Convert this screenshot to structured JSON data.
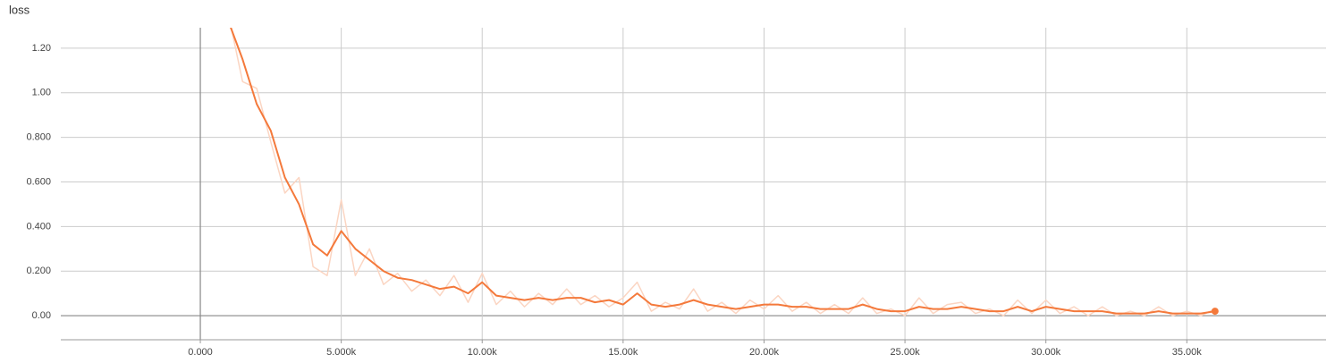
{
  "chart_data": {
    "type": "line",
    "title": "loss",
    "x": [
      1000,
      1500,
      2000,
      2500,
      3000,
      3500,
      4000,
      4500,
      5000,
      5500,
      6000,
      6500,
      7000,
      7500,
      8000,
      8500,
      9000,
      9500,
      10000,
      10500,
      11000,
      11500,
      12000,
      12500,
      13000,
      13500,
      14000,
      14500,
      15000,
      15500,
      16000,
      16500,
      17000,
      17500,
      18000,
      18500,
      19000,
      19500,
      20000,
      20500,
      21000,
      21500,
      22000,
      22500,
      23000,
      23500,
      24000,
      24500,
      25000,
      25500,
      26000,
      26500,
      27000,
      27500,
      28000,
      28500,
      29000,
      29500,
      30000,
      30500,
      31000,
      31500,
      32000,
      32500,
      33000,
      33500,
      34000,
      34500,
      35000,
      35500,
      36000
    ],
    "series": [
      {
        "color": "#fbd5c2",
        "values": [
          1.35,
          1.05,
          1.02,
          0.78,
          0.55,
          0.62,
          0.22,
          0.18,
          0.52,
          0.18,
          0.3,
          0.14,
          0.19,
          0.11,
          0.16,
          0.09,
          0.18,
          0.06,
          0.19,
          0.05,
          0.11,
          0.04,
          0.1,
          0.05,
          0.12,
          0.05,
          0.09,
          0.04,
          0.08,
          0.15,
          0.02,
          0.06,
          0.03,
          0.12,
          0.02,
          0.06,
          0.01,
          0.07,
          0.03,
          0.09,
          0.02,
          0.06,
          0.01,
          0.05,
          0.01,
          0.08,
          0.01,
          0.03,
          0.0,
          0.08,
          0.01,
          0.05,
          0.06,
          0.01,
          0.03,
          0.0,
          0.07,
          0.01,
          0.07,
          0.01,
          0.04,
          0.0,
          0.04,
          0.0,
          0.02,
          0.0,
          0.04,
          0.0,
          0.02,
          0.0,
          0.03
        ]
      },
      {
        "color": "#f4793b",
        "values": [
          1.32,
          1.15,
          0.95,
          0.83,
          0.62,
          0.5,
          0.32,
          0.27,
          0.38,
          0.3,
          0.25,
          0.2,
          0.17,
          0.16,
          0.14,
          0.12,
          0.13,
          0.1,
          0.15,
          0.09,
          0.08,
          0.07,
          0.08,
          0.07,
          0.08,
          0.08,
          0.06,
          0.07,
          0.05,
          0.1,
          0.05,
          0.04,
          0.05,
          0.07,
          0.05,
          0.04,
          0.03,
          0.04,
          0.05,
          0.05,
          0.04,
          0.04,
          0.03,
          0.03,
          0.03,
          0.05,
          0.03,
          0.02,
          0.02,
          0.04,
          0.03,
          0.03,
          0.04,
          0.03,
          0.02,
          0.02,
          0.04,
          0.02,
          0.04,
          0.03,
          0.02,
          0.02,
          0.02,
          0.01,
          0.01,
          0.01,
          0.02,
          0.01,
          0.01,
          0.01,
          0.02
        ]
      }
    ],
    "xlim": [
      -4950,
      39940
    ],
    "ylim": [
      -0.108,
      1.292
    ],
    "xticks": [
      {
        "value": 0,
        "label": "0.000"
      },
      {
        "value": 5000,
        "label": "5.000k"
      },
      {
        "value": 10000,
        "label": "10.00k"
      },
      {
        "value": 15000,
        "label": "15.00k"
      },
      {
        "value": 20000,
        "label": "20.00k"
      },
      {
        "value": 25000,
        "label": "25.00k"
      },
      {
        "value": 30000,
        "label": "30.00k"
      },
      {
        "value": 35000,
        "label": "35.00k"
      }
    ],
    "yticks": [
      {
        "value": 0,
        "label": "0.00"
      },
      {
        "value": 0.2,
        "label": "0.200"
      },
      {
        "value": 0.4,
        "label": "0.400"
      },
      {
        "value": 0.6,
        "label": "0.600"
      },
      {
        "value": 0.8,
        "label": "0.800"
      },
      {
        "value": 1,
        "label": "1.00"
      },
      {
        "value": 1.2,
        "label": "1.20"
      }
    ],
    "grid": true
  }
}
